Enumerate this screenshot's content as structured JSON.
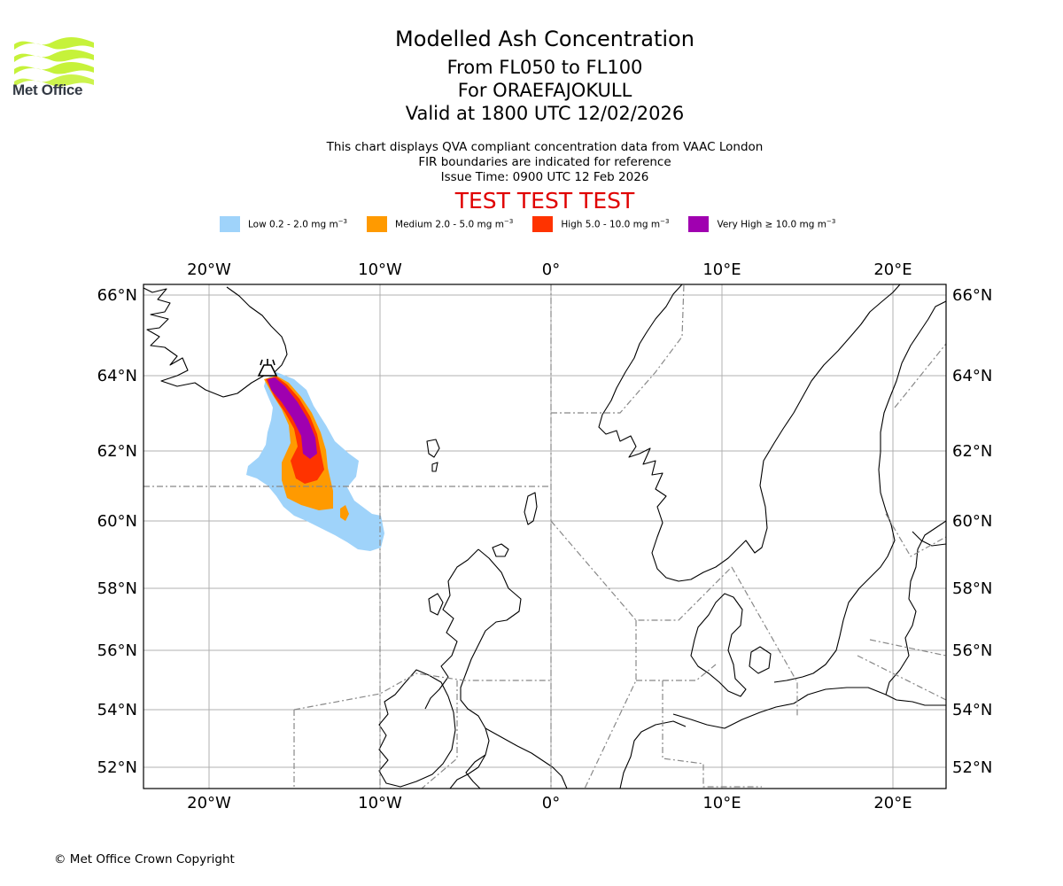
{
  "brand": {
    "name": "Met Office",
    "logo_icon": "met-office-wave-logo"
  },
  "title": {
    "main": "Modelled Ash Concentration",
    "levels": "From FL050 to FL100",
    "volcano": "For ORAEFAJOKULL",
    "valid": "Valid at 1800 UTC 12/02/2026"
  },
  "subtitle": {
    "line1": "This chart displays QVA compliant concentration data from VAAC London",
    "line2": "FIR boundaries are indicated for reference",
    "line3": "Issue Time: 0900 UTC 12 Feb 2026"
  },
  "test_banner": "TEST TEST TEST",
  "legend": [
    {
      "label": "Low 0.2 - 2.0 mg m",
      "color": "#9fd3fa"
    },
    {
      "label": "Medium 2.0 - 5.0 mg m",
      "color": "#ff9a00"
    },
    {
      "label": "High 5.0 - 10.0 mg m",
      "color": "#ff3300"
    },
    {
      "label": "Very High  ≥  10.0 mg m",
      "color": "#a000b0"
    }
  ],
  "legend_unit_exp": "−3",
  "map": {
    "lon_labels": [
      "20°W",
      "10°W",
      "0°",
      "10°E",
      "20°E"
    ],
    "lat_labels": [
      "66°N",
      "64°N",
      "62°N",
      "60°N",
      "58°N",
      "56°N",
      "54°N",
      "52°N"
    ],
    "volcano_marker_icon": "volcano-icon"
  },
  "copyright": "© Met Office Crown Copyright"
}
